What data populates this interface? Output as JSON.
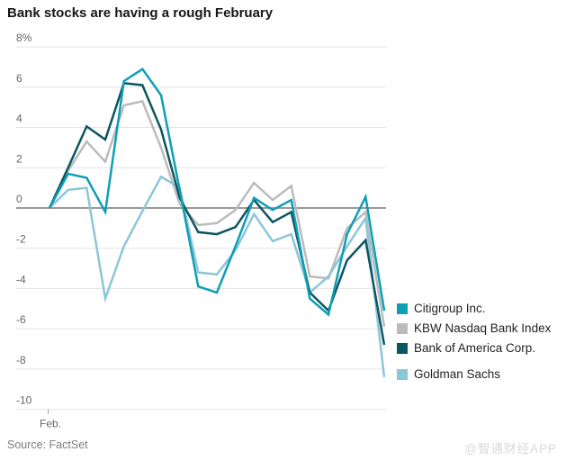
{
  "title": "Bank stocks are having a rough February",
  "source": "Source: FactSet",
  "watermark": "@智通财经APP",
  "chart_data": {
    "type": "line",
    "title": "Bank stocks are having a rough February",
    "xlabel": "Feb.",
    "ylabel": "%",
    "ylim": [
      -10,
      8
    ],
    "grid": true,
    "legend_position": "right",
    "y_ticks": [
      8,
      6,
      4,
      2,
      0,
      -2,
      -4,
      -6,
      -8,
      -10
    ],
    "y_tick_labels": [
      "8%",
      "6",
      "4",
      "2",
      "0",
      "-2",
      "-4",
      "-6",
      "-8",
      "-10"
    ],
    "x": [
      1,
      2,
      3,
      4,
      5,
      6,
      7,
      8,
      9,
      10,
      11,
      12,
      13,
      14,
      15,
      16,
      17,
      18,
      19
    ],
    "x_axis_tick_label": "Feb.",
    "series": [
      {
        "name": "Citigroup Inc.",
        "color": "#0E9FB5",
        "values": [
          0,
          1.7,
          1.5,
          -0.2,
          6.3,
          6.9,
          5.6,
          0.9,
          -3.9,
          -4.2,
          -1.9,
          0.5,
          -0.1,
          0.4,
          -4.5,
          -5.3,
          -1.3,
          0.55,
          -5.1
        ]
      },
      {
        "name": "KBW Nasdaq Bank Index",
        "color": "#BBBBBB",
        "values": [
          0,
          1.85,
          3.3,
          2.3,
          5.1,
          5.3,
          3.0,
          0.2,
          -0.85,
          -0.75,
          -0.1,
          1.25,
          0.4,
          1.1,
          -3.4,
          -3.5,
          -1.0,
          -0.2,
          -5.9
        ]
      },
      {
        "name": "Bank of America Corp.",
        "color": "#0C5662",
        "values": [
          0,
          2.0,
          4.05,
          3.4,
          6.2,
          6.1,
          3.9,
          0.5,
          -1.2,
          -1.3,
          -0.95,
          0.4,
          -0.7,
          -0.2,
          -4.2,
          -5.1,
          -2.6,
          -1.6,
          -6.8
        ]
      },
      {
        "name": "Goldman Sachs",
        "color": "#8CC6D8",
        "values": [
          0,
          0.9,
          1.0,
          -4.5,
          -1.9,
          -0.15,
          1.55,
          1.0,
          -3.2,
          -3.3,
          -2.1,
          -0.3,
          -1.65,
          -1.3,
          -4.2,
          -3.4,
          -1.9,
          -0.5,
          -8.4
        ]
      }
    ]
  }
}
